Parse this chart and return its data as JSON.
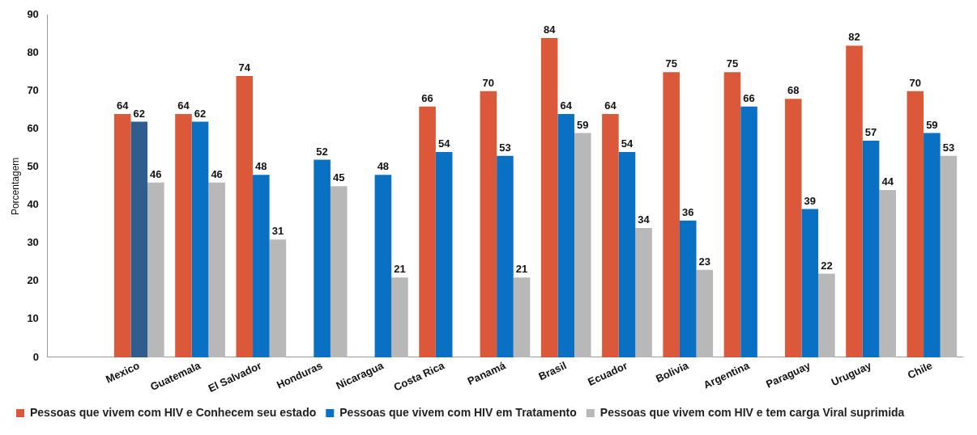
{
  "chart_data": {
    "type": "bar",
    "ylabel": "Porcentagem",
    "categories": [
      null,
      "Mexico",
      "Guatemala",
      "El Salvador",
      "Honduras",
      "Nicaragua",
      "Costa Rica",
      "Panamá",
      "Brasil",
      "Ecuador",
      "Bolivia",
      "Argentina",
      "Paraguay",
      "Uruguay",
      "Chile"
    ],
    "series": [
      {
        "name": "Pessoas que vivem com HIV e Conhecem seu estado",
        "color": "#d9593a",
        "values": [
          null,
          64,
          64,
          74,
          null,
          null,
          66,
          70,
          84,
          64,
          75,
          75,
          68,
          82,
          70
        ]
      },
      {
        "name": "Pessoas que vivem com HIV em Tratamento",
        "color": "#0a70c2",
        "colors": [
          "#0a70c2",
          "#2e5d8e",
          "#0a70c2",
          "#0a70c2",
          "#0a70c2",
          "#0a70c2",
          "#0a70c2",
          "#0a70c2",
          "#0a70c2",
          "#0a70c2",
          "#0a70c2",
          "#0a70c2",
          "#0a70c2",
          "#0a70c2",
          "#0a70c2"
        ],
        "values": [
          null,
          62,
          62,
          48,
          52,
          48,
          54,
          53,
          64,
          54,
          36,
          66,
          39,
          57,
          59
        ]
      },
      {
        "name": "Pessoas que vivem com HIV e tem carga Viral suprimida",
        "color": "#b8b8b8",
        "values": [
          null,
          46,
          46,
          31,
          45,
          21,
          null,
          21,
          59,
          34,
          23,
          null,
          22,
          44,
          53
        ]
      }
    ],
    "ylim": [
      0,
      90
    ],
    "yticks": [
      0,
      10,
      20,
      30,
      40,
      50,
      60,
      70,
      80,
      90
    ],
    "grid": false,
    "legend": "bottom",
    "data_labels": true
  }
}
